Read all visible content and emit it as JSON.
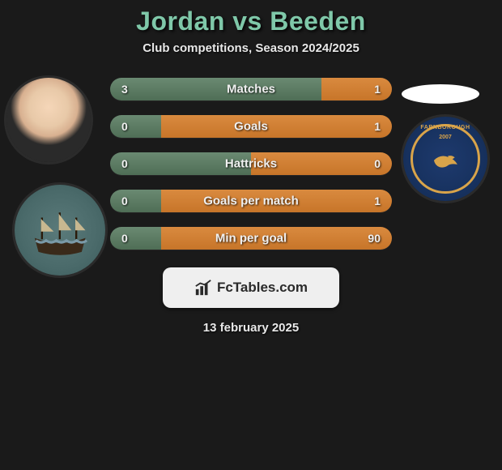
{
  "title": "Jordan vs Beeden",
  "subtitle": "Club competitions, Season 2024/2025",
  "footer_date": "13 february 2025",
  "logo_text": "FcTables.com",
  "colors": {
    "title": "#7fc8a9",
    "bar_left_top": "#6a8a72",
    "bar_left_bottom": "#4f6e56",
    "bar_right_top": "#d98a3f",
    "bar_right_bottom": "#c77529",
    "background": "#1a1a1a"
  },
  "club_right": {
    "name": "FARNBOROUGH",
    "year": "2007"
  },
  "bars": [
    {
      "label": "Matches",
      "left_val": "3",
      "right_val": "1",
      "left_pct": 75,
      "right_pct": 25
    },
    {
      "label": "Goals",
      "left_val": "0",
      "right_val": "1",
      "left_pct": 18,
      "right_pct": 82
    },
    {
      "label": "Hattricks",
      "left_val": "0",
      "right_val": "0",
      "left_pct": 50,
      "right_pct": 50
    },
    {
      "label": "Goals per match",
      "left_val": "0",
      "right_val": "1",
      "left_pct": 18,
      "right_pct": 82
    },
    {
      "label": "Min per goal",
      "left_val": "0",
      "right_val": "90",
      "left_pct": 18,
      "right_pct": 82
    }
  ]
}
